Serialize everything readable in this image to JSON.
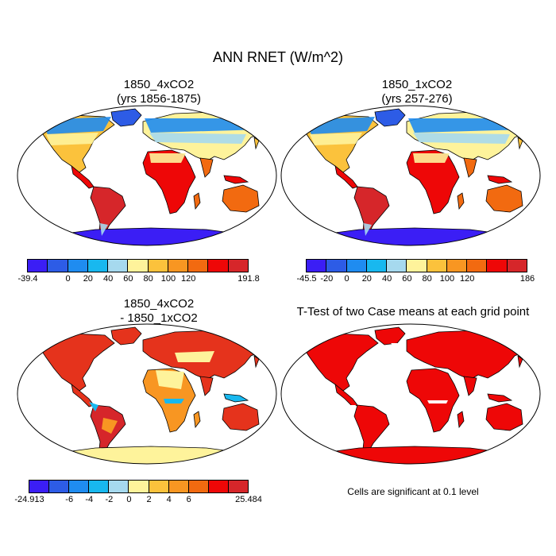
{
  "title": "ANN RNET (W/m^2)",
  "panels": [
    {
      "line1": "1850_4xCO2",
      "line2": "(yrs 1856-1875)"
    },
    {
      "line1": "1850_1xCO2",
      "line2": "(yrs 257-276)"
    },
    {
      "line1": "1850_4xCO2",
      "line2": "- 1850_1xCO2"
    },
    {
      "line1": "T-Test of two Case means at each grid point"
    }
  ],
  "colorbars": [
    {
      "colors": [
        "#3b1ef5",
        "#2d5ce6",
        "#1f8cf0",
        "#18b8ef",
        "#a6d9ee",
        "#fef39b",
        "#fbc23c",
        "#f89622",
        "#f26a10",
        "#ee0707",
        "#d6262a"
      ],
      "labels": [
        "-39.4",
        "0",
        "20",
        "40",
        "60",
        "80",
        "100",
        "120",
        "191.8"
      ],
      "positions": [
        0,
        2,
        3,
        4,
        5,
        6,
        7,
        8,
        11
      ]
    },
    {
      "colors": [
        "#3b1ef5",
        "#2d5ce6",
        "#1f8cf0",
        "#18b8ef",
        "#a6d9ee",
        "#fef39b",
        "#fbc23c",
        "#f89622",
        "#f26a10",
        "#ee0707",
        "#d6262a"
      ],
      "labels": [
        "-45.5",
        "-20",
        "0",
        "20",
        "40",
        "60",
        "80",
        "100",
        "120",
        "186"
      ],
      "positions": [
        0,
        1,
        2,
        3,
        4,
        5,
        6,
        7,
        8,
        11
      ]
    },
    {
      "colors": [
        "#3b1ef5",
        "#2d5ce6",
        "#1f8cf0",
        "#18b8ef",
        "#a6d9ee",
        "#fef39b",
        "#fbc23c",
        "#f89622",
        "#f26a10",
        "#ee0707",
        "#d6262a"
      ],
      "labels": [
        "-24.913",
        "-6",
        "-4",
        "-2",
        "0",
        "2",
        "4",
        "6",
        "25.484"
      ],
      "positions": [
        0,
        2,
        3,
        4,
        5,
        6,
        7,
        8,
        11
      ]
    }
  ],
  "map_colors": {
    "arctic": "#2d5ce6",
    "cold": "#1f8cf0",
    "cool": "#a6d9ee",
    "mild": "#fef39b",
    "warm": "#fbc23c",
    "hot": "#f26a10",
    "tropical": "#ee0707",
    "deep": "#d6262a",
    "antarctic": "#3b1ef5",
    "diff_main": "#e5331c",
    "diff_warm": "#f89622",
    "diff_light": "#fef39b",
    "diff_blue": "#18b8ef",
    "sig": "#ee0707",
    "ocean": "#ffffff"
  },
  "note": "Cells are significant at 0.1 level"
}
